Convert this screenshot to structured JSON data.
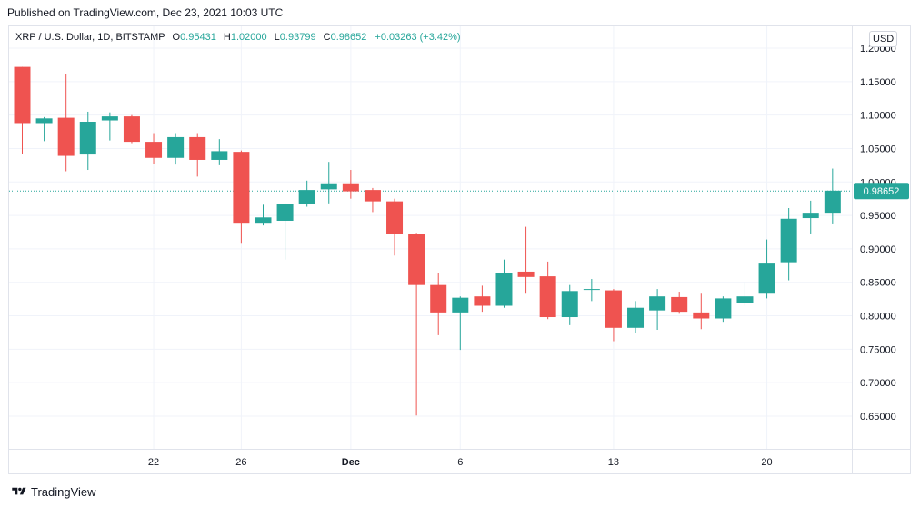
{
  "header": {
    "published": "Published on TradingView.com, Dec 23, 2021 10:03 UTC"
  },
  "legend": {
    "symbol": "XRP / U.S. Dollar, 1D, BITSTAMP",
    "o_label": "O",
    "o_value": "0.95431",
    "h_label": "H",
    "h_value": "1.02000",
    "l_label": "L",
    "l_value": "0.93799",
    "c_label": "C",
    "c_value": "0.98652",
    "change": "+0.03263 (+3.42%)"
  },
  "currency_button": "USD",
  "footer": {
    "brand": "TradingView",
    "brand_icon": "tradingview-logo-icon"
  },
  "colors": {
    "up": "#26a69a",
    "down": "#ef5350",
    "grid": "#f0f3fa",
    "price_line": "#26a69a"
  },
  "chart_data": {
    "type": "candlestick",
    "title": "XRP / U.S. Dollar, 1D, BITSTAMP",
    "ylim": [
      0.6,
      1.23
    ],
    "y_ticks": [
      "0.65000",
      "0.70000",
      "0.75000",
      "0.80000",
      "0.85000",
      "0.90000",
      "0.95000",
      "1.00000",
      "1.05000",
      "1.10000",
      "1.15000",
      "1.20000"
    ],
    "x_ticks": [
      {
        "label": "22",
        "date": "2021-11-22"
      },
      {
        "label": "26",
        "date": "2021-11-26"
      },
      {
        "label": "Dec",
        "date": "2021-12-01",
        "bold": true
      },
      {
        "label": "6",
        "date": "2021-12-06"
      },
      {
        "label": "13",
        "date": "2021-12-13"
      },
      {
        "label": "20",
        "date": "2021-12-20"
      }
    ],
    "last_price": "0.98652",
    "candles": [
      {
        "date": "2021-11-16",
        "o": 1.172,
        "h": 1.172,
        "l": 1.042,
        "c": 1.088
      },
      {
        "date": "2021-11-17",
        "o": 1.088,
        "h": 1.097,
        "l": 1.061,
        "c": 1.095
      },
      {
        "date": "2021-11-18",
        "o": 1.096,
        "h": 1.162,
        "l": 1.016,
        "c": 1.039
      },
      {
        "date": "2021-11-19",
        "o": 1.041,
        "h": 1.105,
        "l": 1.018,
        "c": 1.09
      },
      {
        "date": "2021-11-20",
        "o": 1.092,
        "h": 1.104,
        "l": 1.062,
        "c": 1.098
      },
      {
        "date": "2021-11-21",
        "o": 1.098,
        "h": 1.1,
        "l": 1.058,
        "c": 1.06
      },
      {
        "date": "2021-11-22",
        "o": 1.06,
        "h": 1.073,
        "l": 1.027,
        "c": 1.036
      },
      {
        "date": "2021-11-23",
        "o": 1.036,
        "h": 1.073,
        "l": 1.026,
        "c": 1.067
      },
      {
        "date": "2021-11-24",
        "o": 1.067,
        "h": 1.073,
        "l": 1.008,
        "c": 1.033
      },
      {
        "date": "2021-11-25",
        "o": 1.033,
        "h": 1.064,
        "l": 1.025,
        "c": 1.046
      },
      {
        "date": "2021-11-26",
        "o": 1.045,
        "h": 1.047,
        "l": 0.909,
        "c": 0.939
      },
      {
        "date": "2021-11-27",
        "o": 0.939,
        "h": 0.966,
        "l": 0.935,
        "c": 0.947
      },
      {
        "date": "2021-11-28",
        "o": 0.942,
        "h": 0.968,
        "l": 0.884,
        "c": 0.967
      },
      {
        "date": "2021-11-29",
        "o": 0.967,
        "h": 1.002,
        "l": 0.963,
        "c": 0.988
      },
      {
        "date": "2021-11-30",
        "o": 0.989,
        "h": 1.03,
        "l": 0.968,
        "c": 0.998
      },
      {
        "date": "2021-12-01",
        "o": 0.998,
        "h": 1.018,
        "l": 0.975,
        "c": 0.986
      },
      {
        "date": "2021-12-02",
        "o": 0.988,
        "h": 0.991,
        "l": 0.955,
        "c": 0.971
      },
      {
        "date": "2021-12-03",
        "o": 0.971,
        "h": 0.975,
        "l": 0.89,
        "c": 0.922
      },
      {
        "date": "2021-12-04",
        "o": 0.922,
        "h": 0.924,
        "l": 0.651,
        "c": 0.846
      },
      {
        "date": "2021-12-05",
        "o": 0.846,
        "h": 0.864,
        "l": 0.771,
        "c": 0.805
      },
      {
        "date": "2021-12-06",
        "o": 0.805,
        "h": 0.829,
        "l": 0.749,
        "c": 0.827
      },
      {
        "date": "2021-12-07",
        "o": 0.829,
        "h": 0.845,
        "l": 0.806,
        "c": 0.815
      },
      {
        "date": "2021-12-08",
        "o": 0.815,
        "h": 0.884,
        "l": 0.812,
        "c": 0.864
      },
      {
        "date": "2021-12-09",
        "o": 0.866,
        "h": 0.933,
        "l": 0.833,
        "c": 0.858
      },
      {
        "date": "2021-12-10",
        "o": 0.859,
        "h": 0.881,
        "l": 0.795,
        "c": 0.798
      },
      {
        "date": "2021-12-11",
        "o": 0.798,
        "h": 0.846,
        "l": 0.786,
        "c": 0.837
      },
      {
        "date": "2021-12-12",
        "o": 0.839,
        "h": 0.855,
        "l": 0.822,
        "c": 0.84
      },
      {
        "date": "2021-12-13",
        "o": 0.838,
        "h": 0.84,
        "l": 0.762,
        "c": 0.782
      },
      {
        "date": "2021-12-14",
        "o": 0.782,
        "h": 0.822,
        "l": 0.774,
        "c": 0.812
      },
      {
        "date": "2021-12-15",
        "o": 0.808,
        "h": 0.84,
        "l": 0.779,
        "c": 0.829
      },
      {
        "date": "2021-12-16",
        "o": 0.828,
        "h": 0.836,
        "l": 0.803,
        "c": 0.806
      },
      {
        "date": "2021-12-17",
        "o": 0.805,
        "h": 0.833,
        "l": 0.78,
        "c": 0.796
      },
      {
        "date": "2021-12-18",
        "o": 0.796,
        "h": 0.829,
        "l": 0.791,
        "c": 0.826
      },
      {
        "date": "2021-12-19",
        "o": 0.819,
        "h": 0.85,
        "l": 0.815,
        "c": 0.829
      },
      {
        "date": "2021-12-20",
        "o": 0.833,
        "h": 0.914,
        "l": 0.826,
        "c": 0.878
      },
      {
        "date": "2021-12-21",
        "o": 0.88,
        "h": 0.961,
        "l": 0.853,
        "c": 0.945
      },
      {
        "date": "2021-12-22",
        "o": 0.946,
        "h": 0.972,
        "l": 0.923,
        "c": 0.954
      },
      {
        "date": "2021-12-23",
        "o": 0.954,
        "h": 1.02,
        "l": 0.938,
        "c": 0.987
      }
    ]
  }
}
